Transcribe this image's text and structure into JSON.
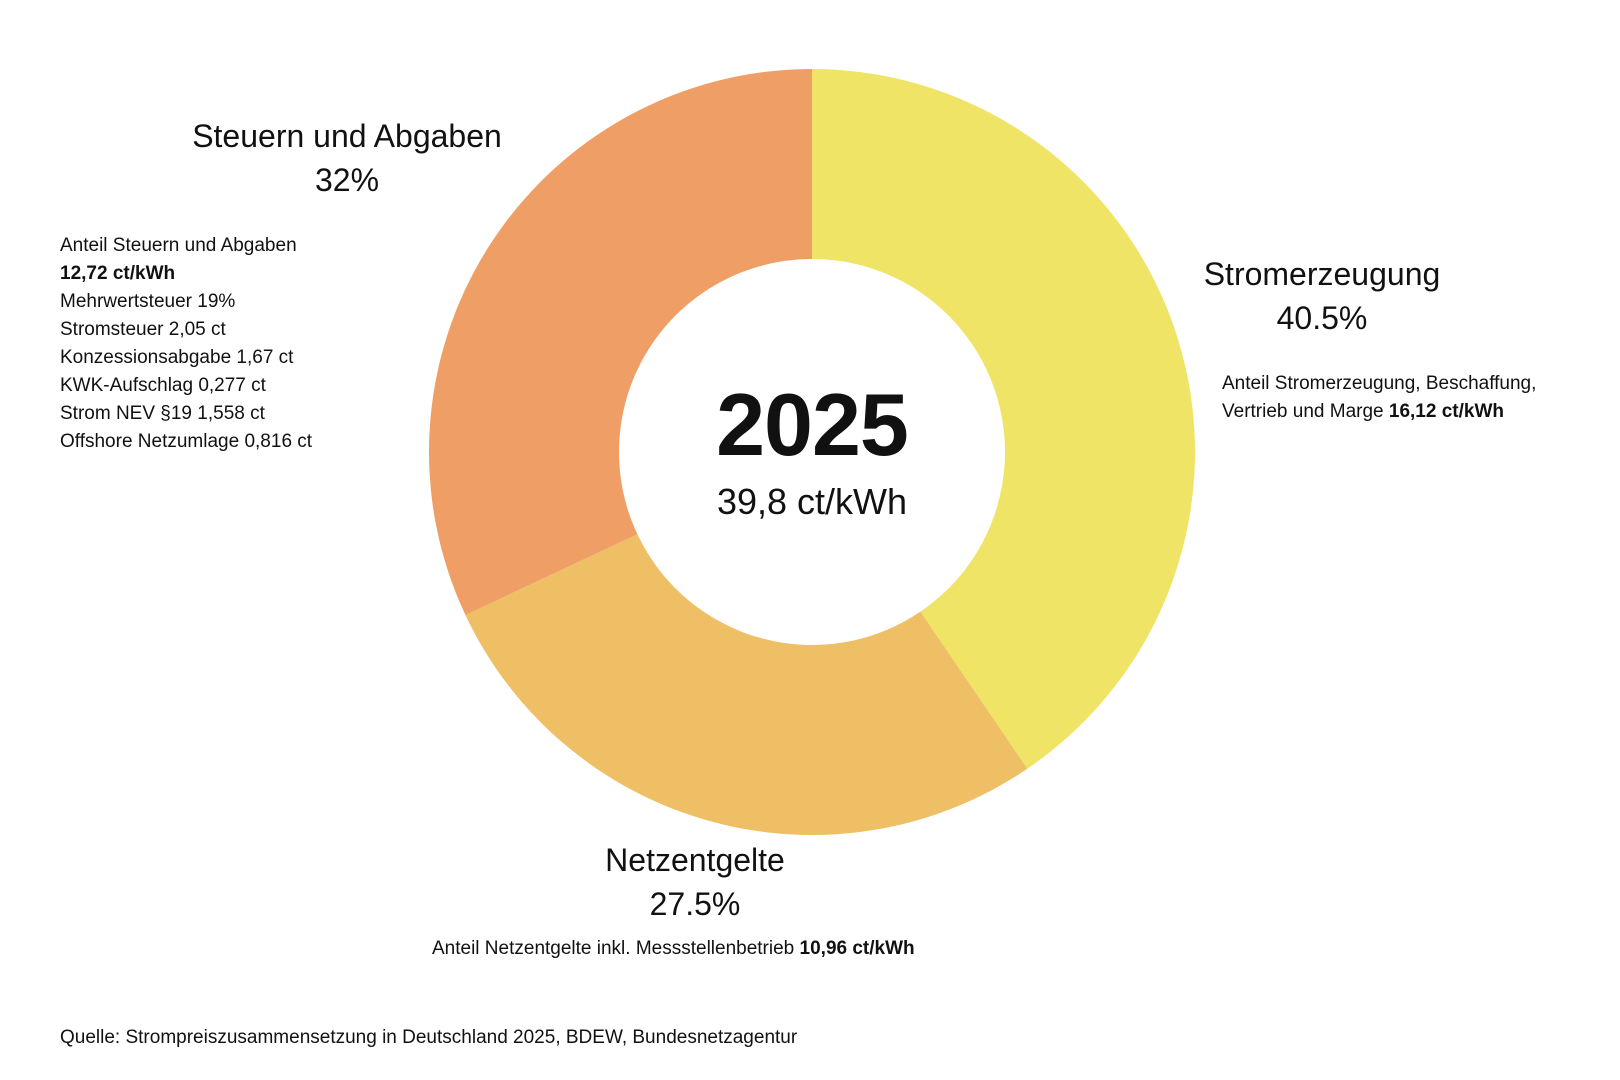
{
  "chart_data": {
    "type": "pie",
    "donut": true,
    "center_title": "2025",
    "center_subtitle": "39,8 ct/kWh",
    "slices": [
      {
        "label": "Stromerzeugung",
        "percent_label": "40.5%",
        "value": 40.5,
        "color": "#EFE466",
        "detail_prefix": "Anteil Stromerzeugung, Beschaffung,",
        "detail_line2": "Vertrieb und Marge",
        "detail_amount": "16,12 ct/kWh"
      },
      {
        "label": "Netzentgelte",
        "percent_label": "27.5%",
        "value": 27.5,
        "color": "#EFBF65",
        "detail_prefix": "Anteil Netzentgelte inkl. Messstellenbetrieb",
        "detail_amount": "10,96 ct/kWh"
      },
      {
        "label": "Steuern und Abgaben",
        "percent_label": "32%",
        "value": 32,
        "color": "#EF9F65",
        "detail_prefix": "Anteil Steuern und Abgaben",
        "detail_amount": "12,72 ct/kWh",
        "detail_items": [
          "Mehrwertsteuer 19%",
          "Stromsteuer 2,05 ct",
          "Konzessionsabgabe 1,67 ct",
          "KWK-Aufschlag 0,277 ct",
          "Strom NEV §19 1,558 ct",
          "Offshore Netzumlage 0,816 ct"
        ]
      }
    ],
    "source": "Quelle: Strompreiszusammensetzung in Deutschland 2025, BDEW, Bundesnetzagentur"
  }
}
